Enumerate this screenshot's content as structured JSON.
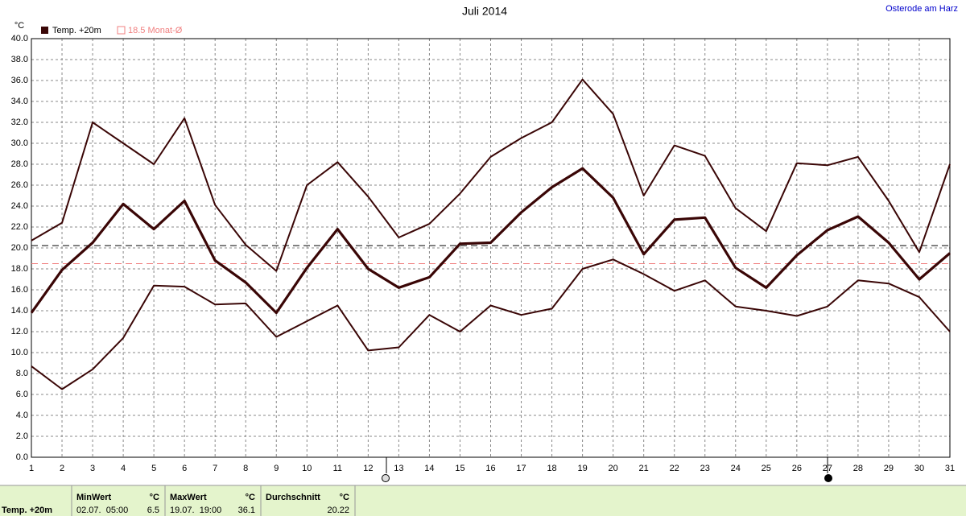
{
  "chart_data": {
    "type": "line",
    "title": "Juli 2014",
    "location": "Osterode am Harz",
    "y_unit": "°C",
    "x": [
      1,
      2,
      3,
      4,
      5,
      6,
      7,
      8,
      9,
      10,
      11,
      12,
      13,
      14,
      15,
      16,
      17,
      18,
      19,
      20,
      21,
      22,
      23,
      24,
      25,
      26,
      27,
      28,
      29,
      30,
      31
    ],
    "xlim": [
      1,
      31
    ],
    "series": [
      {
        "name": "Temp. +20m",
        "color": "#3a0606",
        "values": [
          13.8,
          17.9,
          20.5,
          24.2,
          21.8,
          24.5,
          18.8,
          16.7,
          13.8,
          18.1,
          21.8,
          18.0,
          16.2,
          17.2,
          20.4,
          20.5,
          23.4,
          25.8,
          27.6,
          24.8,
          19.4,
          22.7,
          22.9,
          18.1,
          16.2,
          19.3,
          21.7,
          23.0,
          20.5,
          17.0,
          19.5
        ],
        "max": [
          20.7,
          22.4,
          32.0,
          30.0,
          28.0,
          32.4,
          24.1,
          20.3,
          17.8,
          26.0,
          28.2,
          24.9,
          21.0,
          22.3,
          25.2,
          28.7,
          30.5,
          32.0,
          36.1,
          32.8,
          25.0,
          29.8,
          28.8,
          23.8,
          21.6,
          28.1,
          27.9,
          28.7,
          24.5,
          19.6,
          28.0
        ],
        "min": [
          8.7,
          6.5,
          8.4,
          11.4,
          16.4,
          16.3,
          14.6,
          14.7,
          11.5,
          13.0,
          14.5,
          10.2,
          10.5,
          13.6,
          12.0,
          14.5,
          13.6,
          14.2,
          18.0,
          18.9,
          17.5,
          15.9,
          16.9,
          14.4,
          14.0,
          13.5,
          14.4,
          16.9,
          16.6,
          15.3,
          12.0
        ]
      }
    ],
    "monthly_mean": {
      "value": 18.5,
      "label": "18.5 Monat-Ø",
      "color": "#f08080"
    },
    "ylim": [
      0,
      40
    ],
    "yticks": [
      {
        "value": 0,
        "label": "0.0"
      },
      {
        "value": 2,
        "label": "2.0"
      },
      {
        "value": 4,
        "label": "4.0"
      },
      {
        "value": 6,
        "label": "6.0"
      },
      {
        "value": 8,
        "label": "8.0"
      },
      {
        "value": 10,
        "label": "10.0"
      },
      {
        "value": 12,
        "label": "12.0"
      },
      {
        "value": 14,
        "label": "14.0"
      },
      {
        "value": 16,
        "label": "16.0"
      },
      {
        "value": 18,
        "label": "18.0"
      },
      {
        "value": 20,
        "label": "20.0"
      },
      {
        "value": 22,
        "label": "22.0"
      },
      {
        "value": 24,
        "label": "24.0"
      },
      {
        "value": 26,
        "label": "26.0"
      },
      {
        "value": 28,
        "label": "28.0"
      },
      {
        "value": 30,
        "label": "30.0"
      },
      {
        "value": 32,
        "label": "32.0"
      },
      {
        "value": 34,
        "label": "34.0"
      },
      {
        "value": 36,
        "label": "36.0"
      },
      {
        "value": 38,
        "label": "38.0"
      },
      {
        "value": 40,
        "label": "40.0"
      }
    ],
    "grid": true
  },
  "footer": {
    "label": "Temp. +20m",
    "min": {
      "title": "MinWert",
      "unit": "°C",
      "time": "02.07.  05:00",
      "value": 6.5
    },
    "max": {
      "title": "MaxWert",
      "unit": "°C",
      "time": "19.07.  19:00",
      "value": 36.1
    },
    "mean": {
      "title": "Durchschnitt",
      "unit": "°C",
      "value": 20.22
    }
  }
}
